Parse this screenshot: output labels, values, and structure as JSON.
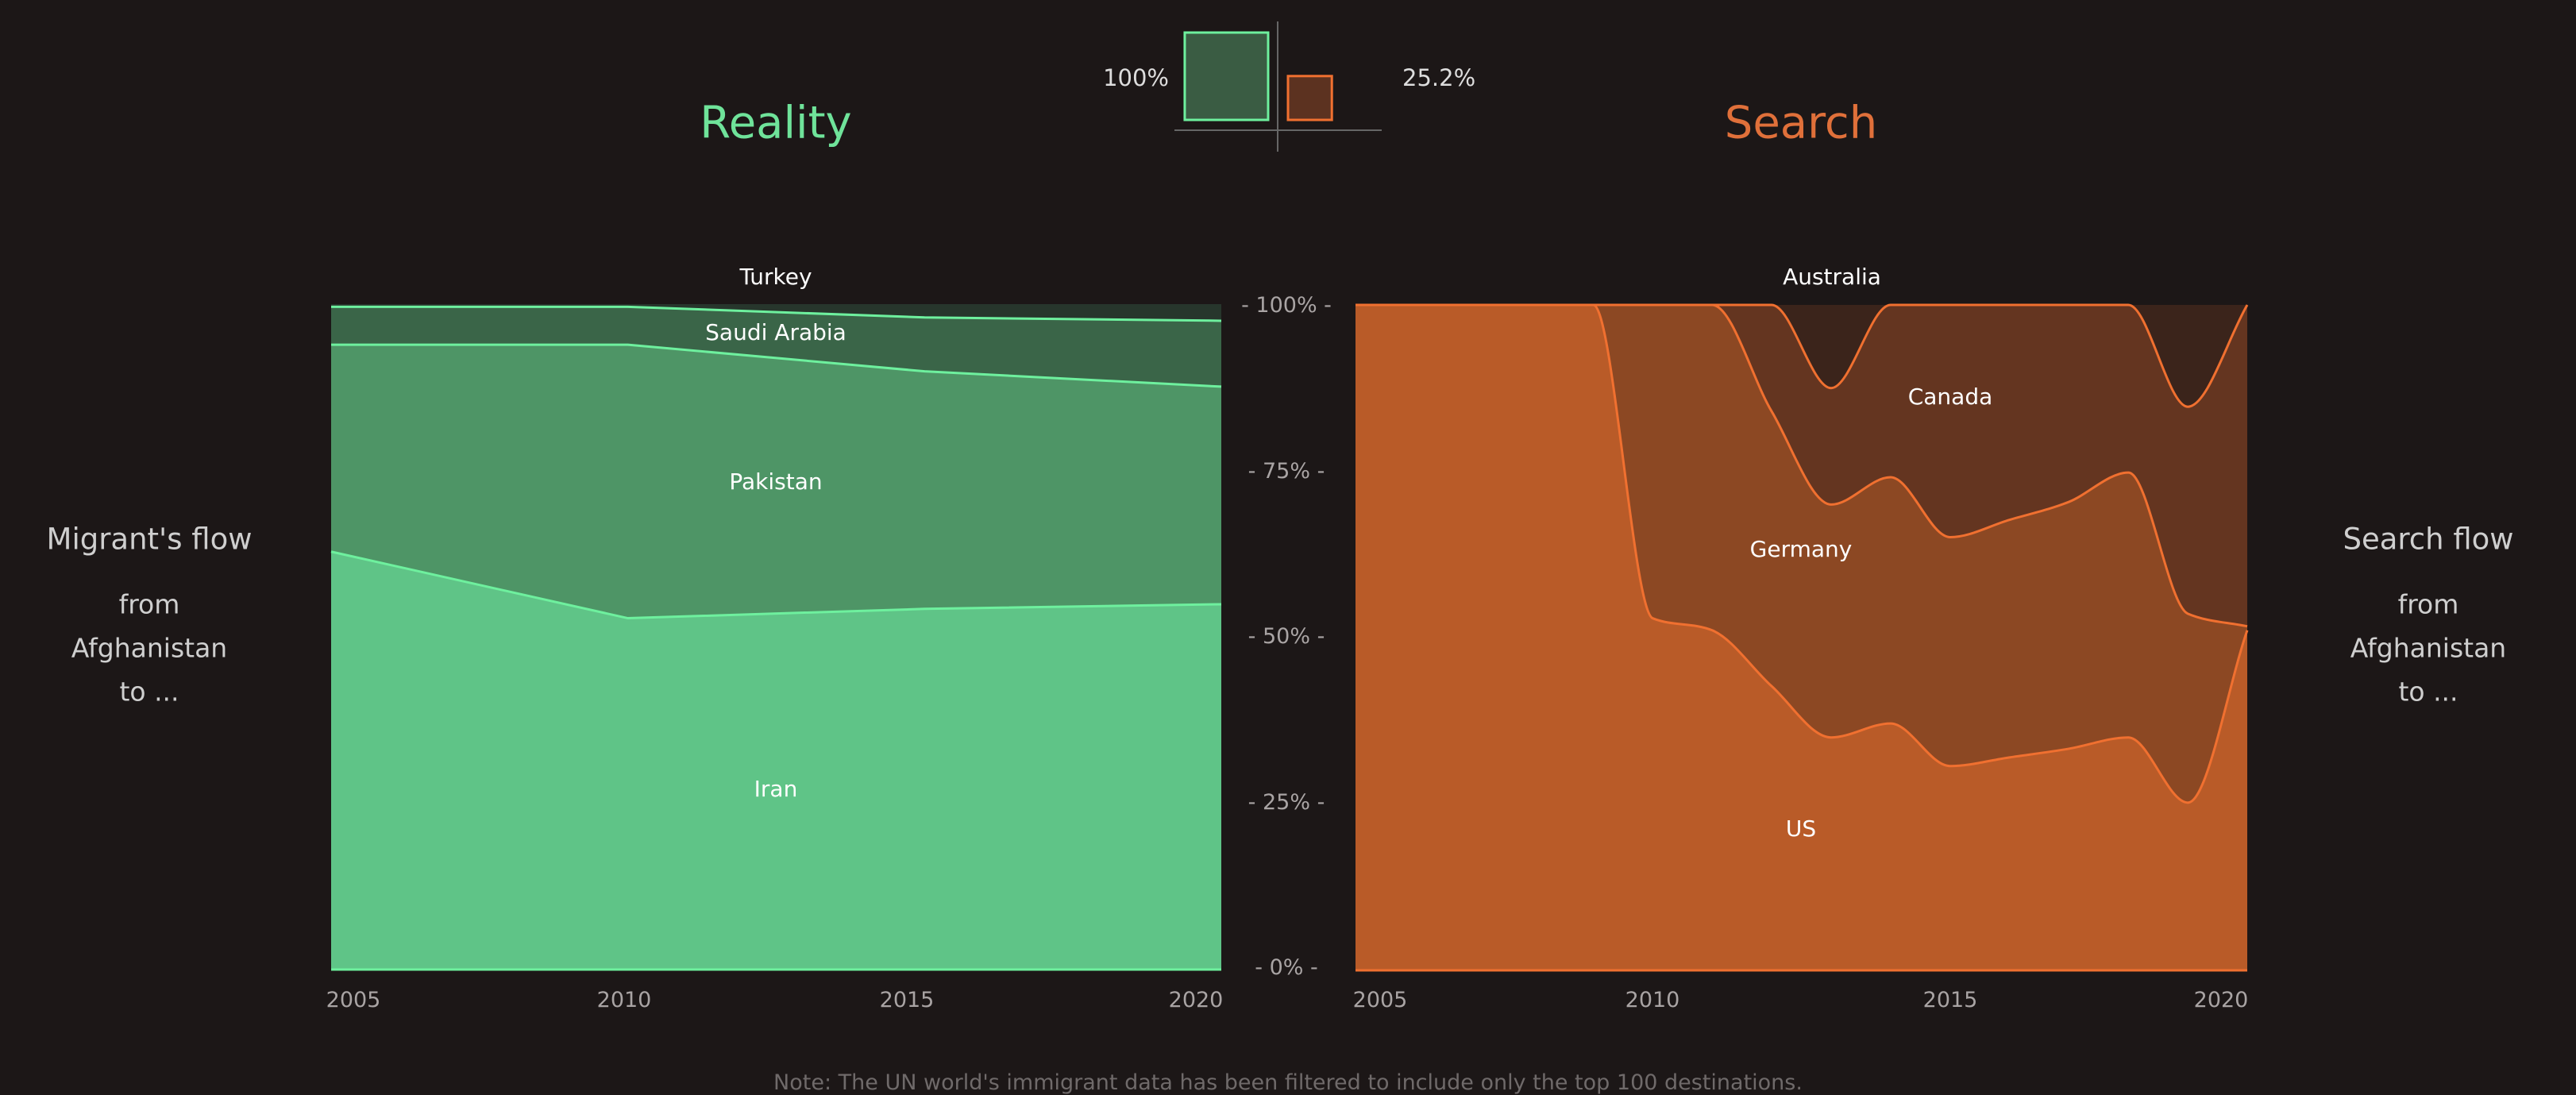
{
  "titles": {
    "left": "Reality",
    "right": "Search"
  },
  "colors": {
    "background": "#1c1717",
    "reality_accent": "#6fe39a",
    "search_accent": "#e8733a",
    "reality_stroke": "#6ef09e",
    "search_stroke": "#f07030"
  },
  "legend": {
    "left_value": "100%",
    "right_value": "25.2%",
    "left_fraction": 1.0,
    "right_fraction": 0.252
  },
  "side_labels": {
    "left": {
      "heading": "Migrant's flow",
      "line1": "from",
      "line2": "Afghanistan",
      "line3": "to ..."
    },
    "right": {
      "heading": "Search flow",
      "line1": "from",
      "line2": "Afghanistan",
      "line3": "to ..."
    }
  },
  "y_axis": {
    "ticks": [
      "- 100% -",
      "- 75% -",
      "- 50% -",
      "- 25% -",
      "- 0% -"
    ]
  },
  "note": "Note: The UN world's immigrant data has been filtered to include only the top 100 destinations.",
  "chart_data": [
    {
      "type": "area",
      "stacked": "percent",
      "title": "Reality",
      "x": [
        2005,
        2010,
        2015,
        2020
      ],
      "x_ticks": [
        "2005",
        "2010",
        "2015",
        "2020"
      ],
      "ylim": [
        0,
        100
      ],
      "y_ticks": [
        "100%",
        "75%",
        "50%",
        "25%",
        "0%"
      ],
      "series": [
        {
          "name": "Iran",
          "values": [
            62.8,
            52.8,
            54.2,
            54.9
          ],
          "color": "#5fc487"
        },
        {
          "name": "Pakistan",
          "values": [
            31.1,
            41.1,
            35.7,
            32.7
          ],
          "color": "#4e9566"
        },
        {
          "name": "Saudi Arabia",
          "values": [
            5.7,
            5.7,
            8.1,
            9.9
          ],
          "color": "#3a6548"
        },
        {
          "name": "Turkey",
          "values": [
            0.4,
            0.4,
            2.0,
            2.5
          ],
          "color": "#27362c"
        }
      ]
    },
    {
      "type": "area",
      "stacked": "percent",
      "title": "Search",
      "x": [
        2005,
        2006,
        2007,
        2008,
        2009,
        2010,
        2011,
        2012,
        2013,
        2014,
        2015,
        2016,
        2017,
        2018,
        2019,
        2020
      ],
      "x_ticks": [
        "2005",
        "2010",
        "2015",
        "2020"
      ],
      "ylim": [
        0,
        100
      ],
      "y_ticks": [
        "100%",
        "75%",
        "50%",
        "25%",
        "0%"
      ],
      "series": [
        {
          "name": "US",
          "values": [
            100,
            100,
            100,
            100,
            100,
            52.9,
            51.1,
            42.7,
            35.0,
            37.1,
            30.7,
            32.0,
            33.3,
            35.0,
            25.2,
            51.1
          ],
          "color": "#b95b28"
        },
        {
          "name": "Germany",
          "values": [
            0,
            0,
            0,
            0,
            0,
            47.1,
            48.9,
            41.3,
            35.0,
            37.0,
            34.4,
            35.7,
            37.1,
            39.8,
            28.4,
            0.6
          ],
          "color": "#8c4823"
        },
        {
          "name": "Canada",
          "values": [
            0,
            0,
            0,
            0,
            0,
            0,
            0,
            16.0,
            17.5,
            25.9,
            34.9,
            32.3,
            29.6,
            25.2,
            31.1,
            48.3
          ],
          "color": "#643520"
        },
        {
          "name": "Australia",
          "values": [
            0,
            0,
            0,
            0,
            0,
            0,
            0,
            0,
            12.5,
            0,
            0,
            0,
            0,
            0,
            15.3,
            0
          ],
          "color": "#3b241b"
        }
      ]
    }
  ]
}
